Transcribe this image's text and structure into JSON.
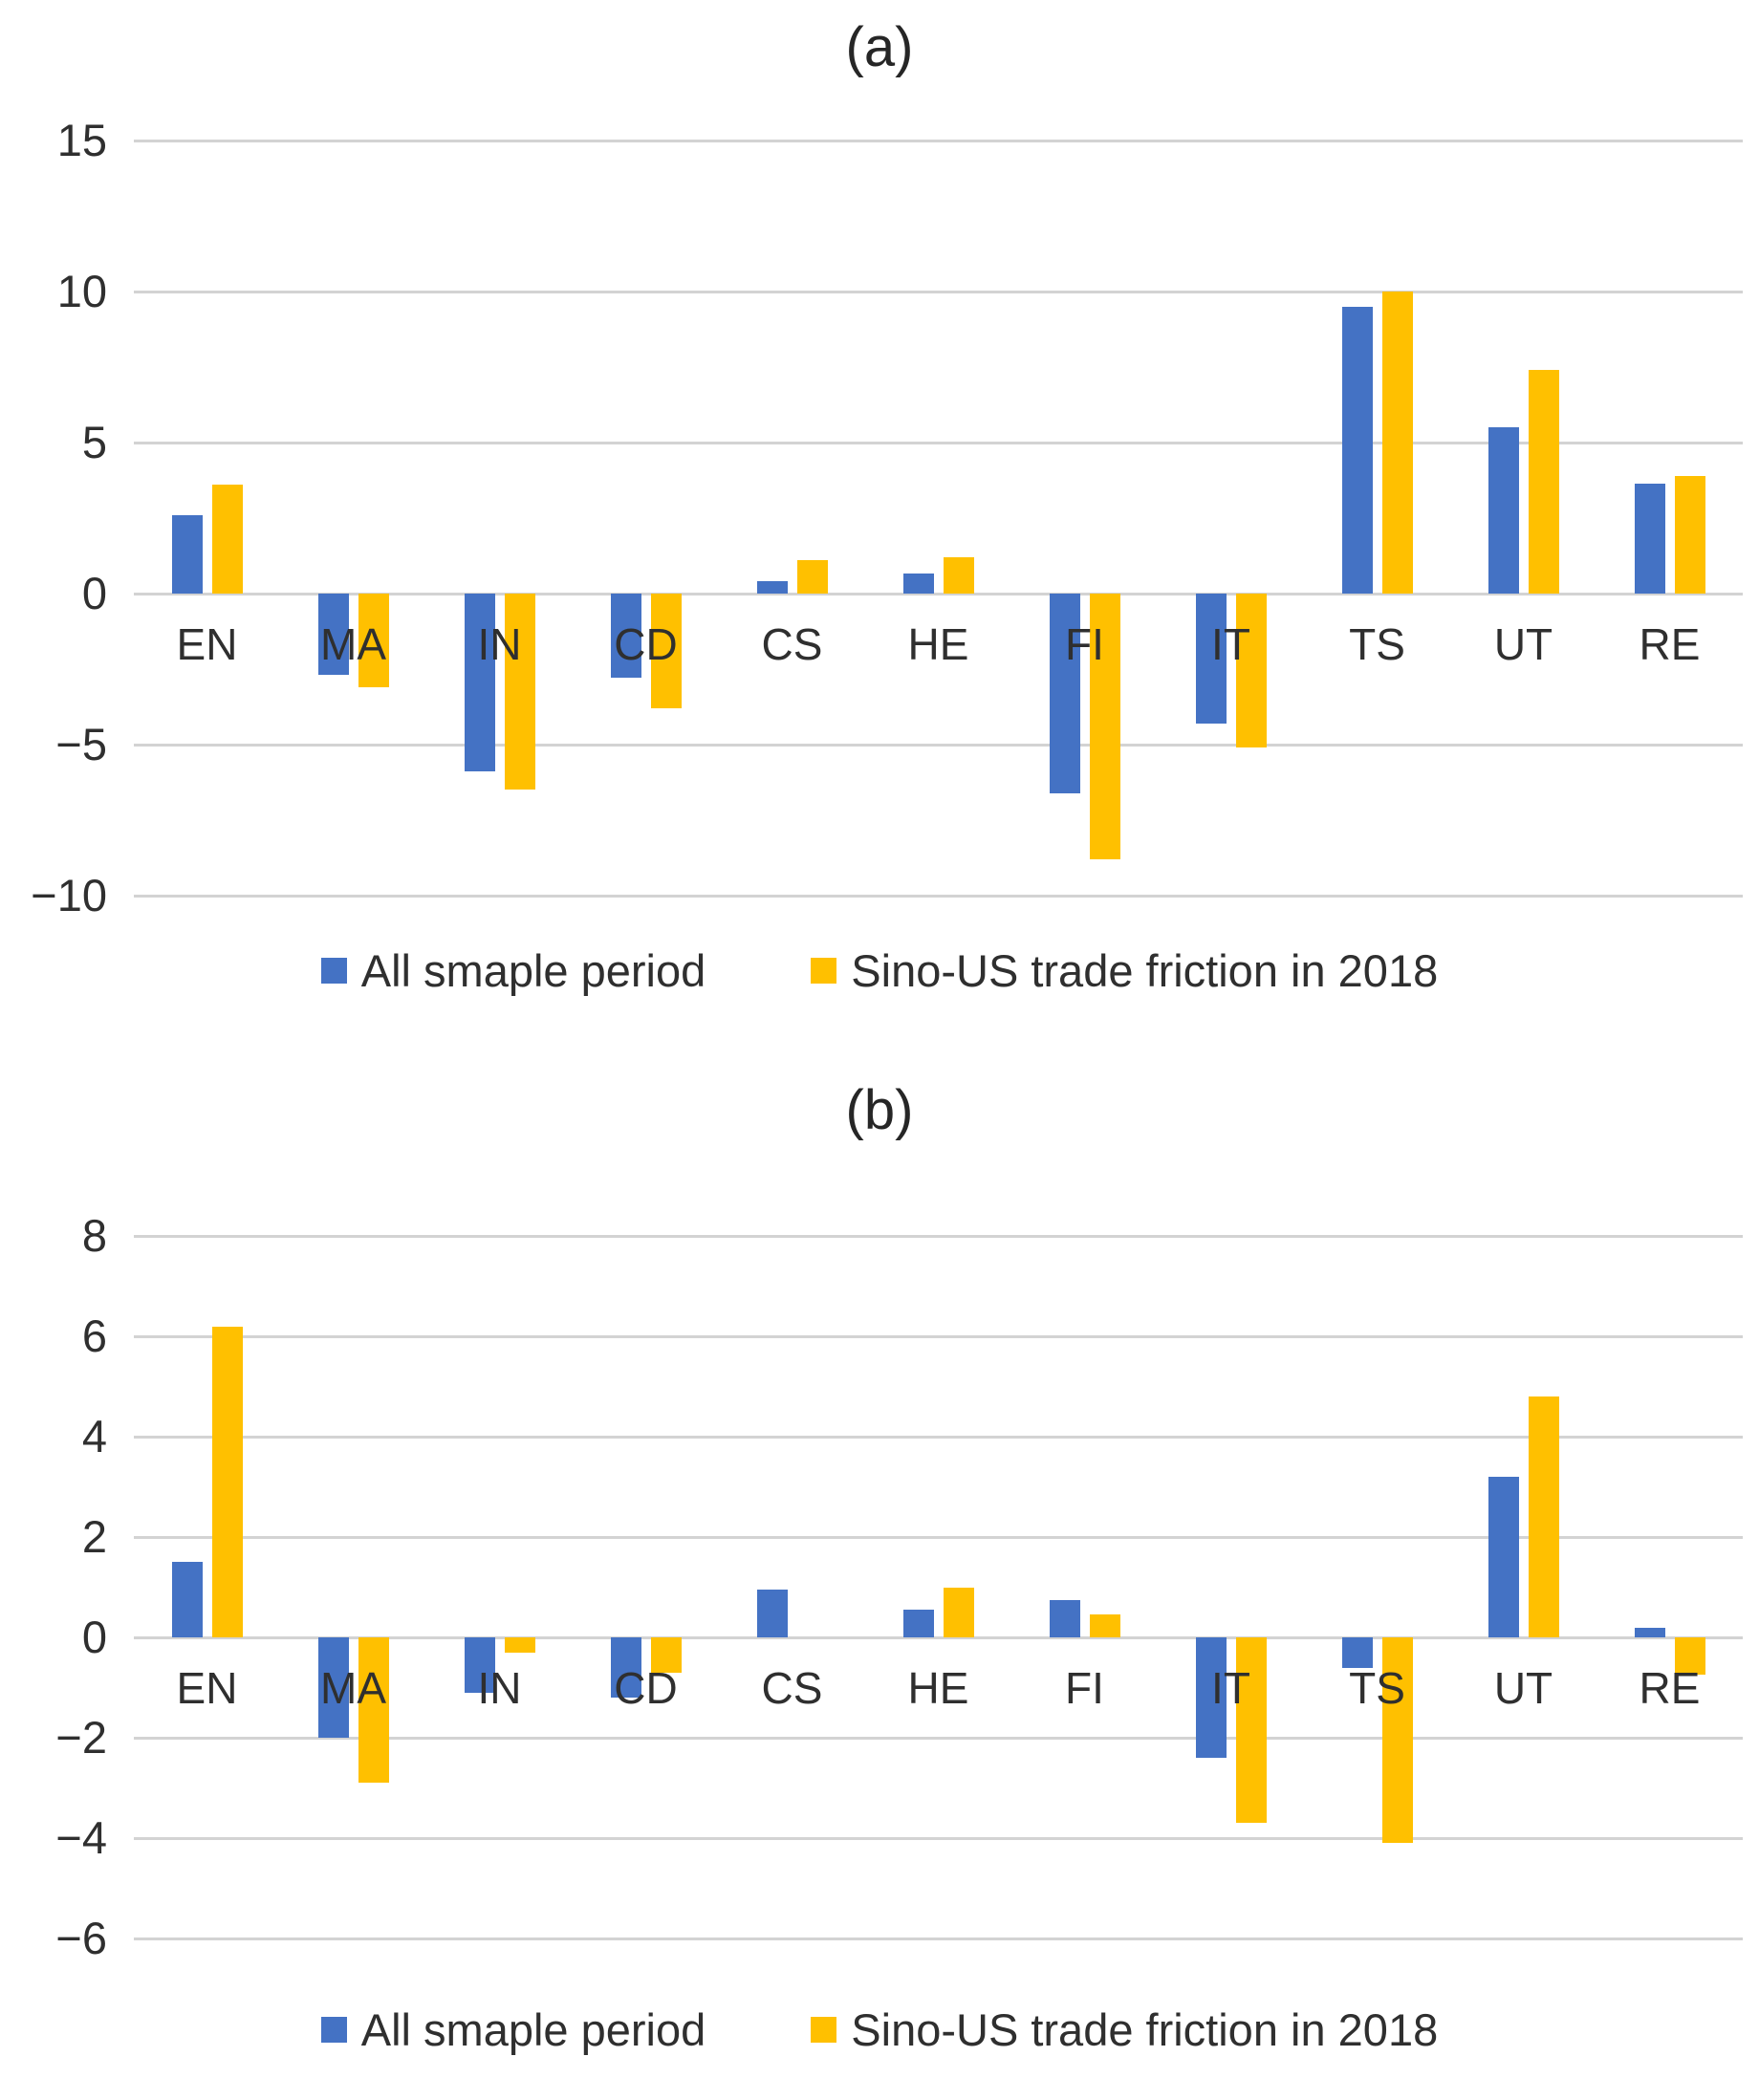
{
  "chart_data": [
    {
      "type": "bar",
      "title": "(a)",
      "categories": [
        "EN",
        "MA",
        "IN",
        "CD",
        "CS",
        "HE",
        "FI",
        "IT",
        "TS",
        "UT",
        "RE"
      ],
      "series": [
        {
          "name": "All smaple period",
          "color": "#4472C4",
          "values": [
            2.6,
            -2.7,
            -5.9,
            -2.8,
            0.4,
            0.65,
            -6.6,
            -4.3,
            9.5,
            5.5,
            3.65
          ]
        },
        {
          "name": "Sino-US trade friction in 2018",
          "color": "#FFC000",
          "values": [
            3.6,
            -3.1,
            -6.5,
            -3.8,
            1.1,
            1.2,
            -8.8,
            -5.1,
            10,
            7.4,
            3.9
          ]
        }
      ],
      "ylim": [
        -10,
        15
      ],
      "yticks": [
        15,
        10,
        5,
        0,
        -5,
        -10
      ],
      "ytick_labels": [
        "15",
        "10",
        "5",
        "0",
        "−5",
        "−10"
      ],
      "grid": true,
      "legend_position": "bottom",
      "xlabel": "",
      "ylabel": ""
    },
    {
      "type": "bar",
      "title": "(b)",
      "categories": [
        "EN",
        "MA",
        "IN",
        "CD",
        "CS",
        "HE",
        "FI",
        "IT",
        "TS",
        "UT",
        "RE"
      ],
      "series": [
        {
          "name": "All smaple period",
          "color": "#4472C4",
          "values": [
            1.5,
            -2.0,
            -1.1,
            -1.2,
            0.95,
            0.55,
            0.75,
            -2.4,
            -0.6,
            3.2,
            0.2
          ]
        },
        {
          "name": "Sino-US trade friction in 2018",
          "color": "#FFC000",
          "values": [
            6.2,
            -2.9,
            -0.3,
            -0.7,
            0,
            1.0,
            0.45,
            -3.7,
            -4.1,
            4.8,
            -0.75
          ]
        }
      ],
      "ylim": [
        -6,
        8
      ],
      "yticks": [
        8,
        6,
        4,
        2,
        0,
        -2,
        -4,
        -6
      ],
      "ytick_labels": [
        "8",
        "6",
        "4",
        "2",
        "0",
        "−2",
        "−4",
        "−6"
      ],
      "grid": true,
      "legend_position": "bottom",
      "xlabel": "",
      "ylabel": ""
    }
  ],
  "styles": {
    "background": "#FFFFFF",
    "gridline_color": "#D3D3D3",
    "text_color": "#2F2F2F"
  }
}
